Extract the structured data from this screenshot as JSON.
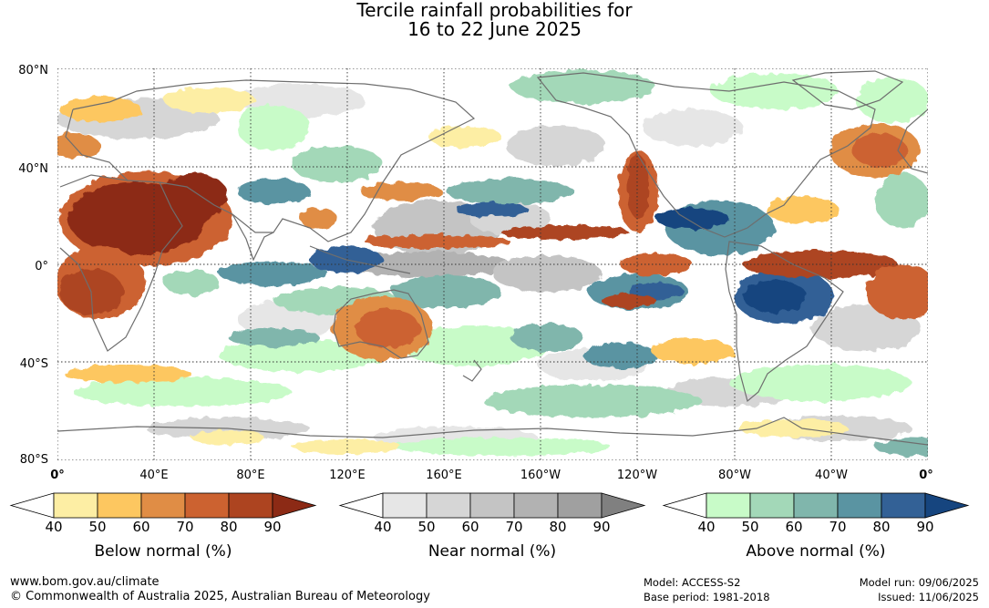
{
  "title": {
    "line1": "Tercile rainfall probabilities for",
    "line2": "16 to 22 June 2025"
  },
  "map": {
    "lat_labels": [
      "80°N",
      "40°N",
      "0°",
      "40°S",
      "80°S"
    ],
    "lon_labels": [
      "0°",
      "40°E",
      "80°E",
      "120°E",
      "160°E",
      "160°W",
      "120°W",
      "80°W",
      "40°W",
      "0°"
    ]
  },
  "legends": [
    {
      "id": "below",
      "title": "Below normal (%)",
      "ticks": [
        "40",
        "50",
        "60",
        "70",
        "80",
        "90"
      ],
      "colors": [
        "#ffffff",
        "#fdeea4",
        "#fdc760",
        "#e08d45",
        "#cc6230",
        "#ad4420",
        "#8c2a15"
      ]
    },
    {
      "id": "near",
      "title": "Near normal (%)",
      "ticks": [
        "40",
        "50",
        "60",
        "70",
        "80",
        "90"
      ],
      "colors": [
        "#ffffff",
        "#e6e6e6",
        "#d6d6d6",
        "#c4c4c4",
        "#b2b2b2",
        "#a0a0a0",
        "#808080"
      ]
    },
    {
      "id": "above",
      "title": "Above normal (%)",
      "ticks": [
        "40",
        "50",
        "60",
        "70",
        "80",
        "90"
      ],
      "colors": [
        "#ffffff",
        "#c8fbc8",
        "#a3d8b8",
        "#80b6ac",
        "#5a94a2",
        "#336196",
        "#16457f"
      ]
    }
  ],
  "footer": {
    "url": "www.bom.gov.au/climate",
    "copyright": "© Commonwealth of Australia 2025, Australian Bureau of Meteorology",
    "model": "Model: ACCESS-S2",
    "base_period": "Base period: 1981-2018",
    "model_run": "Model run: 09/06/2025",
    "issued": "Issued: 11/06/2025"
  }
}
